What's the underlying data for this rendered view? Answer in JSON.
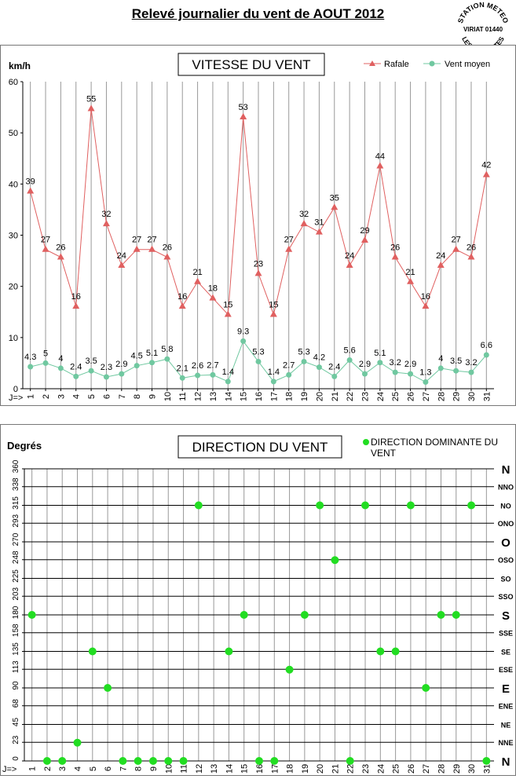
{
  "page": {
    "title": "Relevé journalier du vent de AOUT 2012",
    "stamp_lines": [
      "STATION METEO",
      "VIRIAT 01440",
      "LES FAUVETTES"
    ]
  },
  "colors": {
    "gust": "#e06060",
    "mean": "#70c8a0",
    "direction_dot": "#22dd22",
    "grid": "#999999"
  },
  "chart_data": [
    {
      "type": "line",
      "title": "VITESSE DU VENT",
      "ylabel": "km/h",
      "xlabel": "J=>",
      "ylim": [
        0,
        60
      ],
      "yticks": [
        0,
        10,
        20,
        30,
        40,
        50,
        60
      ],
      "legend_position": "top-right",
      "categories": [
        "1",
        "2",
        "3",
        "4",
        "5",
        "6",
        "7",
        "8",
        "9",
        "10",
        "11",
        "12",
        "13",
        "14",
        "15",
        "16",
        "17",
        "18",
        "19",
        "20",
        "21",
        "22",
        "23",
        "24",
        "25",
        "26",
        "27",
        "28",
        "29",
        "30",
        "31"
      ],
      "series": [
        {
          "name": "Rafale",
          "values": [
            38.6,
            27.2,
            25.7,
            16.1,
            54.7,
            32.2,
            24.1,
            27.2,
            27.2,
            25.7,
            16.1,
            20.9,
            17.7,
            14.5,
            53.1,
            22.5,
            14.5,
            27.2,
            32.2,
            30.6,
            35.4,
            24.1,
            29.0,
            43.5,
            25.7,
            20.9,
            16.1,
            24.1,
            27.2,
            25.7,
            41.8
          ],
          "labels": [
            "39",
            "27",
            "26",
            "16",
            "55",
            "32",
            "24",
            "27",
            "27",
            "26",
            "16",
            "21",
            "18",
            "15",
            "53",
            "23",
            "15",
            "27",
            "32",
            "31",
            "35",
            "24",
            "29",
            "44",
            "26",
            "21",
            "16",
            "24",
            "27",
            "26",
            "42"
          ]
        },
        {
          "name": "Vent moyen",
          "values": [
            4.3,
            5,
            4,
            2.4,
            3.5,
            2.3,
            2.9,
            4.5,
            5.1,
            5.8,
            2.1,
            2.6,
            2.7,
            1.4,
            9.3,
            5.3,
            1.4,
            2.7,
            5.3,
            4.2,
            2.4,
            5.6,
            2.9,
            5.1,
            3.2,
            2.9,
            1.3,
            4,
            3.5,
            3.2,
            6.6
          ],
          "labels": [
            "4.3",
            "5",
            "4",
            "2.4",
            "3.5",
            "2.3",
            "2.9",
            "4.5",
            "5.1",
            "5.8",
            "2.1",
            "2.6",
            "2.7",
            "1.4",
            "9.3",
            "5.3",
            "1.4",
            "2.7",
            "5.3",
            "4.2",
            "2.4",
            "5.6",
            "2.9",
            "5.1",
            "3.2",
            "2.9",
            "1.3",
            "4",
            "3.5",
            "3.2",
            "6.6"
          ]
        }
      ],
      "grid": true
    },
    {
      "type": "scatter",
      "title": "DIRECTION DU VENT",
      "ylabel": "Degrés",
      "xlabel": "J=>",
      "ylim": [
        0,
        360
      ],
      "legend_position": "top-right",
      "legend_label": "DIRECTION DOMINANTE DU VENT",
      "categories": [
        "1",
        "2",
        "3",
        "4",
        "5",
        "6",
        "7",
        "8",
        "9",
        "10",
        "11",
        "12",
        "13",
        "14",
        "15",
        "16",
        "17",
        "18",
        "19",
        "20",
        "21",
        "22",
        "23",
        "24",
        "25",
        "26",
        "27",
        "28",
        "29",
        "30",
        "31"
      ],
      "yticks": [
        0,
        23,
        45,
        68,
        90,
        113,
        135,
        158,
        180,
        203,
        225,
        248,
        270,
        293,
        315,
        338,
        360
      ],
      "ytick_labels": [
        "0",
        "23",
        "45",
        "68",
        "90",
        "113",
        "135",
        "158",
        "180",
        "203",
        "225",
        "248",
        "270",
        "293",
        "315",
        "338",
        "360"
      ],
      "compass_labels": [
        "N",
        "NNE",
        "NE",
        "ENE",
        "E",
        "ESE",
        "SE",
        "SSE",
        "S",
        "SSO",
        "SO",
        "OSO",
        "O",
        "ONO",
        "NO",
        "NNO",
        "N"
      ],
      "values": [
        180,
        0,
        0,
        22.5,
        135,
        90,
        0,
        0,
        0,
        0,
        0,
        315,
        null,
        135,
        180,
        0,
        0,
        112.5,
        180,
        315,
        247.5,
        0,
        315,
        135,
        135,
        315,
        90,
        180,
        180,
        315,
        0
      ],
      "grid": true
    }
  ]
}
